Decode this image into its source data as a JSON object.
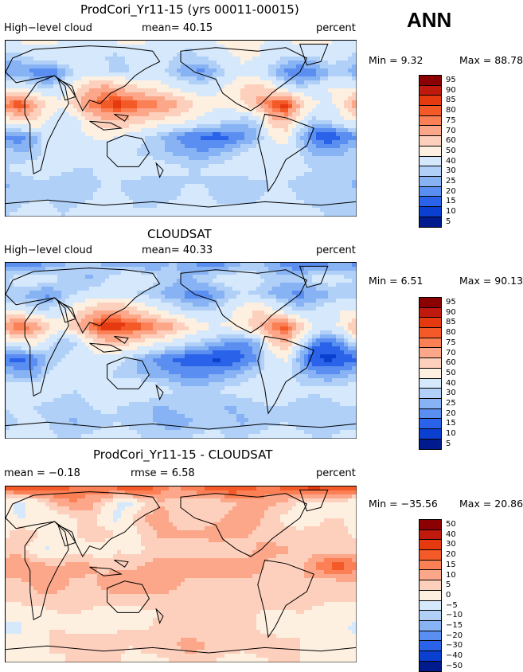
{
  "season": "ANN",
  "chart_data": [
    {
      "type": "heatmap",
      "title": "ProdCori_Yr11-15 (yrs 00011-00015)",
      "left_label": "High−level cloud",
      "center_label": "mean=   40.15",
      "units": "percent",
      "min_text": "Min =    9.32",
      "max_text": "Max =   88.78",
      "levels": [
        "95",
        "90",
        "85",
        "80",
        "75",
        "70",
        "60",
        "50",
        "40",
        "30",
        "25",
        "20",
        "15",
        "10",
        "5"
      ],
      "colors": [
        "#8b0000",
        "#c0190e",
        "#e53a10",
        "#f45a28",
        "#fb8055",
        "#fca789",
        "#fdd0bd",
        "#fdf0e0",
        "#d6e8fb",
        "#b0d0f8",
        "#87b2f3",
        "#5a8ef0",
        "#2a63ea",
        "#0a3fd0",
        "#001b8e"
      ],
      "rows": [
        [
          38,
          41,
          44,
          42,
          40,
          38,
          36,
          38,
          42,
          45,
          40,
          36,
          34,
          32,
          35,
          40,
          44,
          46,
          42,
          38,
          40,
          44,
          46,
          42,
          38,
          36
        ],
        [
          26,
          28,
          32,
          36,
          38,
          36,
          32,
          30,
          28,
          32,
          36,
          34,
          30,
          28,
          30,
          34,
          38,
          42,
          40,
          34,
          30,
          28,
          30,
          34,
          32,
          28
        ],
        [
          22,
          20,
          18,
          14,
          20,
          30,
          36,
          32,
          28,
          30,
          34,
          32,
          26,
          20,
          18,
          24,
          32,
          38,
          34,
          26,
          18,
          14,
          16,
          24,
          26,
          22
        ],
        [
          38,
          40,
          34,
          28,
          36,
          48,
          58,
          66,
          62,
          54,
          50,
          46,
          40,
          36,
          34,
          38,
          44,
          52,
          56,
          48,
          36,
          30,
          34,
          40,
          42,
          40
        ],
        [
          72,
          84,
          66,
          48,
          42,
          56,
          72,
          80,
          84,
          80,
          76,
          72,
          64,
          54,
          46,
          42,
          44,
          50,
          62,
          80,
          86,
          60,
          42,
          38,
          44,
          70
        ],
        [
          44,
          50,
          54,
          40,
          30,
          36,
          50,
          60,
          62,
          56,
          52,
          48,
          46,
          42,
          38,
          34,
          30,
          26,
          30,
          56,
          62,
          40,
          28,
          30,
          38,
          44
        ],
        [
          18,
          16,
          22,
          34,
          36,
          38,
          40,
          42,
          40,
          36,
          30,
          26,
          20,
          16,
          14,
          12,
          14,
          18,
          24,
          40,
          44,
          26,
          14,
          10,
          14,
          18
        ],
        [
          28,
          24,
          26,
          34,
          38,
          40,
          38,
          36,
          32,
          30,
          28,
          26,
          24,
          22,
          20,
          22,
          26,
          30,
          34,
          38,
          36,
          30,
          24,
          22,
          24,
          28
        ],
        [
          30,
          32,
          34,
          34,
          32,
          30,
          30,
          32,
          34,
          36,
          36,
          34,
          32,
          30,
          30,
          32,
          34,
          36,
          36,
          34,
          32,
          32,
          30,
          30,
          30,
          30
        ],
        [
          24,
          26,
          28,
          28,
          26,
          26,
          28,
          30,
          30,
          28,
          26,
          26,
          28,
          30,
          30,
          28,
          26,
          26,
          28,
          30,
          30,
          28,
          26,
          26,
          26,
          24
        ],
        [
          26,
          28,
          30,
          30,
          28,
          28,
          30,
          32,
          32,
          30,
          28,
          28,
          30,
          32,
          32,
          30,
          28,
          28,
          30,
          32,
          32,
          30,
          28,
          28,
          28,
          26
        ],
        [
          30,
          32,
          34,
          32,
          30,
          32,
          34,
          34,
          32,
          30,
          32,
          34,
          34,
          32,
          30,
          32,
          34,
          34,
          32,
          30,
          32,
          34,
          32,
          30,
          30,
          30
        ]
      ]
    },
    {
      "type": "heatmap",
      "title": "CLOUDSAT",
      "left_label": "High−level cloud",
      "center_label": "mean=   40.33",
      "units": "percent",
      "min_text": "Min =    6.51",
      "max_text": "Max =   90.13",
      "levels": [
        "95",
        "90",
        "85",
        "80",
        "75",
        "70",
        "60",
        "50",
        "40",
        "30",
        "25",
        "20",
        "15",
        "10",
        "5"
      ],
      "colors": [
        "#8b0000",
        "#c0190e",
        "#e53a10",
        "#f45a28",
        "#fb8055",
        "#fca789",
        "#fdd0bd",
        "#fdf0e0",
        "#d6e8fb",
        "#b0d0f8",
        "#87b2f3",
        "#5a8ef0",
        "#2a63ea",
        "#0a3fd0",
        "#001b8e"
      ],
      "rows": [
        [
          18,
          14,
          16,
          20,
          24,
          26,
          28,
          24,
          22,
          20,
          18,
          22,
          26,
          22,
          18,
          16,
          20,
          24,
          26,
          22,
          18,
          14,
          16,
          18,
          20,
          18
        ],
        [
          30,
          34,
          36,
          34,
          30,
          26,
          24,
          28,
          34,
          38,
          36,
          30,
          26,
          24,
          28,
          32,
          34,
          36,
          32,
          28,
          26,
          28,
          32,
          34,
          32,
          30
        ],
        [
          24,
          26,
          22,
          18,
          24,
          30,
          34,
          36,
          34,
          30,
          28,
          24,
          22,
          18,
          16,
          20,
          26,
          30,
          28,
          24,
          20,
          18,
          20,
          24,
          26,
          24
        ],
        [
          40,
          36,
          32,
          30,
          36,
          48,
          56,
          62,
          64,
          56,
          48,
          40,
          34,
          30,
          28,
          30,
          38,
          46,
          52,
          44,
          34,
          28,
          30,
          36,
          40,
          40
        ],
        [
          70,
          80,
          70,
          54,
          46,
          58,
          74,
          86,
          84,
          82,
          76,
          70,
          62,
          52,
          44,
          40,
          42,
          48,
          56,
          74,
          80,
          58,
          40,
          36,
          42,
          66
        ],
        [
          36,
          40,
          46,
          34,
          24,
          28,
          44,
          56,
          58,
          52,
          46,
          40,
          36,
          32,
          28,
          24,
          20,
          18,
          24,
          52,
          60,
          36,
          18,
          14,
          20,
          32
        ],
        [
          14,
          12,
          16,
          26,
          30,
          34,
          36,
          36,
          32,
          28,
          22,
          18,
          14,
          12,
          10,
          8,
          10,
          14,
          20,
          36,
          42,
          22,
          10,
          8,
          10,
          14
        ],
        [
          26,
          22,
          22,
          30,
          34,
          36,
          34,
          32,
          28,
          26,
          24,
          22,
          20,
          18,
          18,
          20,
          22,
          26,
          30,
          34,
          32,
          26,
          22,
          20,
          22,
          26
        ],
        [
          34,
          36,
          38,
          36,
          32,
          30,
          32,
          36,
          38,
          40,
          38,
          34,
          30,
          28,
          28,
          30,
          32,
          34,
          36,
          36,
          34,
          32,
          32,
          32,
          34,
          34
        ],
        [
          30,
          32,
          30,
          28,
          26,
          28,
          30,
          32,
          30,
          28,
          26,
          24,
          26,
          28,
          28,
          26,
          24,
          26,
          28,
          30,
          30,
          28,
          26,
          28,
          30,
          30
        ],
        [
          28,
          30,
          32,
          30,
          26,
          24,
          26,
          28,
          30,
          28,
          26,
          24,
          22,
          24,
          26,
          28,
          26,
          24,
          26,
          28,
          30,
          28,
          26,
          26,
          28,
          28
        ],
        [
          32,
          34,
          34,
          32,
          30,
          30,
          32,
          34,
          34,
          32,
          30,
          28,
          28,
          30,
          32,
          32,
          30,
          30,
          32,
          34,
          34,
          32,
          30,
          30,
          32,
          32
        ]
      ]
    },
    {
      "type": "heatmap",
      "title": "ProdCori_Yr11-15 - CLOUDSAT",
      "left_label": "mean =   −0.18",
      "center_label": "rmse =    6.58",
      "units": "percent",
      "min_text": "Min = −35.56",
      "max_text": "Max =   20.86",
      "levels": [
        "50",
        "40",
        "30",
        "20",
        "15",
        "10",
        "5",
        "0",
        "−5",
        "−10",
        "−15",
        "−20",
        "−30",
        "−40",
        "−50"
      ],
      "colors": [
        "#8b0000",
        "#c0190e",
        "#e53a10",
        "#f45a28",
        "#fb8055",
        "#fca789",
        "#fdd0bd",
        "#fdf0e0",
        "#d6e8fb",
        "#b0d0f8",
        "#87b2f3",
        "#5a8ef0",
        "#2a63ea",
        "#0a3fd0",
        "#001b8e"
      ],
      "rows": [
        [
          18,
          20,
          22,
          20,
          18,
          14,
          12,
          16,
          18,
          22,
          20,
          14,
          10,
          12,
          16,
          20,
          22,
          20,
          16,
          14,
          18,
          22,
          24,
          22,
          20,
          18
        ],
        [
          -4,
          -6,
          -4,
          2,
          8,
          10,
          8,
          2,
          -6,
          -6,
          0,
          4,
          4,
          4,
          2,
          2,
          4,
          6,
          8,
          6,
          4,
          0,
          -2,
          0,
          -2,
          -4
        ],
        [
          -2,
          -6,
          -4,
          -4,
          -4,
          0,
          2,
          -4,
          -6,
          0,
          6,
          8,
          4,
          2,
          2,
          4,
          6,
          8,
          6,
          2,
          -2,
          -4,
          -4,
          0,
          0,
          -2
        ],
        [
          -2,
          4,
          2,
          -2,
          0,
          0,
          2,
          4,
          -2,
          -2,
          2,
          6,
          6,
          6,
          6,
          8,
          6,
          6,
          4,
          4,
          2,
          2,
          4,
          4,
          2,
          -2
        ],
        [
          2,
          4,
          -4,
          -6,
          -4,
          -2,
          -2,
          -6,
          0,
          -2,
          0,
          2,
          2,
          2,
          2,
          2,
          2,
          2,
          6,
          6,
          6,
          2,
          2,
          2,
          2,
          4
        ],
        [
          8,
          10,
          8,
          6,
          6,
          8,
          6,
          4,
          4,
          4,
          6,
          8,
          10,
          10,
          10,
          10,
          10,
          8,
          6,
          4,
          2,
          4,
          10,
          16,
          18,
          12
        ],
        [
          4,
          4,
          6,
          8,
          6,
          4,
          4,
          6,
          8,
          8,
          8,
          8,
          6,
          4,
          4,
          4,
          4,
          4,
          4,
          4,
          2,
          4,
          4,
          2,
          4,
          4
        ],
        [
          2,
          2,
          4,
          4,
          4,
          4,
          4,
          4,
          4,
          4,
          4,
          4,
          4,
          4,
          4,
          2,
          4,
          4,
          4,
          4,
          4,
          4,
          2,
          2,
          2,
          2
        ],
        [
          -4,
          -4,
          -4,
          -2,
          0,
          0,
          -2,
          -4,
          -4,
          -4,
          -2,
          0,
          0,
          2,
          2,
          2,
          2,
          2,
          0,
          -2,
          -2,
          0,
          -2,
          -4,
          -4,
          -4
        ],
        [
          -6,
          -6,
          -2,
          0,
          0,
          -2,
          -2,
          -2,
          0,
          0,
          0,
          2,
          4,
          2,
          2,
          2,
          2,
          0,
          0,
          -2,
          -2,
          0,
          0,
          -2,
          -4,
          -6
        ],
        [
          -2,
          -2,
          -2,
          0,
          2,
          4,
          4,
          4,
          2,
          0,
          2,
          4,
          4,
          8,
          6,
          2,
          2,
          2,
          4,
          4,
          2,
          0,
          -2,
          0,
          -2,
          -2
        ],
        [
          -2,
          -2,
          0,
          0,
          -2,
          2,
          2,
          0,
          0,
          -2,
          -2,
          -2,
          0,
          2,
          2,
          0,
          -2,
          -4,
          -2,
          0,
          2,
          0,
          0,
          0,
          -2,
          -2
        ]
      ]
    }
  ]
}
